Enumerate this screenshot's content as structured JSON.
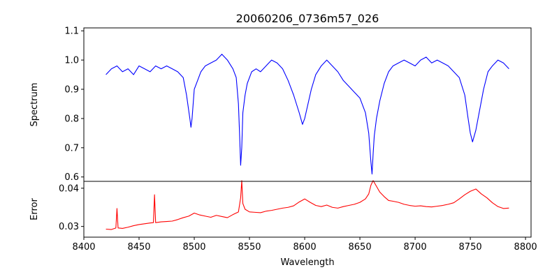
{
  "chart_data": [
    {
      "type": "line",
      "title": "20060206_0736m57_026",
      "xlabel": "",
      "ylabel": "Spectrum",
      "xlim": [
        8400,
        8805
      ],
      "ylim": [
        0.585,
        1.11
      ],
      "xticks": [
        8400,
        8450,
        8500,
        8550,
        8600,
        8650,
        8700,
        8750,
        8800
      ],
      "yticks": [
        0.6,
        0.7,
        0.8,
        0.9,
        1.0,
        1.1
      ],
      "ytick_labels": [
        "0.6",
        "0.7",
        "0.8",
        "0.9",
        "1.0",
        "1.1"
      ],
      "grid": false,
      "series": [
        {
          "color": "#0000ff",
          "x": [
            8420,
            8425,
            8430,
            8435,
            8440,
            8445,
            8450,
            8455,
            8460,
            8465,
            8470,
            8475,
            8480,
            8485,
            8490,
            8493,
            8496,
            8497,
            8498,
            8500,
            8503,
            8506,
            8510,
            8515,
            8520,
            8525,
            8530,
            8535,
            8538,
            8540,
            8541,
            8542,
            8543,
            8544,
            8546,
            8548,
            8552,
            8556,
            8560,
            8565,
            8570,
            8575,
            8580,
            8585,
            8590,
            8595,
            8598,
            8600,
            8603,
            8606,
            8610,
            8615,
            8620,
            8625,
            8630,
            8635,
            8640,
            8645,
            8650,
            8655,
            8658,
            8660,
            8661,
            8662,
            8663,
            8665,
            8668,
            8672,
            8676,
            8680,
            8685,
            8690,
            8695,
            8700,
            8705,
            8710,
            8715,
            8720,
            8725,
            8730,
            8735,
            8740,
            8745,
            8748,
            8750,
            8752,
            8755,
            8758,
            8762,
            8766,
            8770,
            8775,
            8780,
            8785
          ],
          "y": [
            0.95,
            0.97,
            0.98,
            0.96,
            0.97,
            0.95,
            0.98,
            0.97,
            0.96,
            0.98,
            0.97,
            0.98,
            0.97,
            0.96,
            0.94,
            0.88,
            0.8,
            0.77,
            0.8,
            0.9,
            0.93,
            0.96,
            0.98,
            0.99,
            1.0,
            1.02,
            1.0,
            0.97,
            0.94,
            0.85,
            0.75,
            0.64,
            0.7,
            0.82,
            0.88,
            0.92,
            0.96,
            0.97,
            0.96,
            0.98,
            1.0,
            0.99,
            0.97,
            0.93,
            0.88,
            0.82,
            0.78,
            0.8,
            0.85,
            0.9,
            0.95,
            0.98,
            1.0,
            0.98,
            0.96,
            0.93,
            0.91,
            0.89,
            0.87,
            0.82,
            0.75,
            0.65,
            0.61,
            0.68,
            0.74,
            0.8,
            0.86,
            0.92,
            0.96,
            0.98,
            0.99,
            1.0,
            0.99,
            0.98,
            1.0,
            1.01,
            0.99,
            1.0,
            0.99,
            0.98,
            0.96,
            0.94,
            0.88,
            0.8,
            0.75,
            0.72,
            0.76,
            0.82,
            0.9,
            0.96,
            0.98,
            1.0,
            0.99,
            0.97
          ]
        }
      ]
    },
    {
      "type": "line",
      "title": "",
      "xlabel": "Wavelength",
      "ylabel": "Error",
      "xlim": [
        8400,
        8805
      ],
      "ylim": [
        0.0272,
        0.0418
      ],
      "xticks": [
        8400,
        8450,
        8500,
        8550,
        8600,
        8650,
        8700,
        8750,
        8800
      ],
      "xtick_labels": [
        "8400",
        "8450",
        "8500",
        "8550",
        "8600",
        "8650",
        "8700",
        "8750",
        "8800"
      ],
      "yticks": [
        0.03,
        0.04
      ],
      "ytick_labels": [
        "0.03",
        "0.04"
      ],
      "grid": false,
      "series": [
        {
          "color": "#ff0000",
          "x": [
            8420,
            8425,
            8429,
            8430,
            8431,
            8435,
            8440,
            8445,
            8450,
            8455,
            8460,
            8463,
            8464,
            8465,
            8470,
            8475,
            8480,
            8485,
            8490,
            8495,
            8500,
            8505,
            8510,
            8515,
            8520,
            8525,
            8530,
            8535,
            8540,
            8542,
            8543,
            8544,
            8546,
            8550,
            8555,
            8560,
            8565,
            8570,
            8575,
            8580,
            8585,
            8590,
            8595,
            8600,
            8605,
            8610,
            8615,
            8620,
            8625,
            8630,
            8635,
            8640,
            8645,
            8650,
            8655,
            8658,
            8660,
            8662,
            8665,
            8668,
            8672,
            8676,
            8680,
            8685,
            8690,
            8695,
            8700,
            8705,
            8710,
            8715,
            8720,
            8725,
            8730,
            8735,
            8740,
            8745,
            8750,
            8755,
            8760,
            8765,
            8770,
            8775,
            8780,
            8785
          ],
          "y": [
            0.0293,
            0.0292,
            0.0296,
            0.0347,
            0.0296,
            0.0295,
            0.0298,
            0.0302,
            0.0305,
            0.0307,
            0.0309,
            0.031,
            0.0383,
            0.031,
            0.0312,
            0.0313,
            0.0314,
            0.0318,
            0.0323,
            0.0327,
            0.0335,
            0.033,
            0.0327,
            0.0324,
            0.0329,
            0.0326,
            0.0323,
            0.0331,
            0.0338,
            0.0375,
            0.042,
            0.036,
            0.0345,
            0.0338,
            0.0337,
            0.0336,
            0.034,
            0.0342,
            0.0345,
            0.0348,
            0.035,
            0.0354,
            0.0364,
            0.0372,
            0.0363,
            0.0355,
            0.0352,
            0.0356,
            0.035,
            0.0348,
            0.0352,
            0.0355,
            0.0358,
            0.0363,
            0.0372,
            0.0385,
            0.0408,
            0.042,
            0.0405,
            0.039,
            0.0378,
            0.0368,
            0.0366,
            0.0363,
            0.0358,
            0.0355,
            0.0353,
            0.0354,
            0.0352,
            0.0351,
            0.0353,
            0.0355,
            0.0358,
            0.0362,
            0.0372,
            0.0383,
            0.0392,
            0.0398,
            0.0385,
            0.0375,
            0.0362,
            0.0352,
            0.0347,
            0.0348
          ]
        }
      ]
    }
  ]
}
